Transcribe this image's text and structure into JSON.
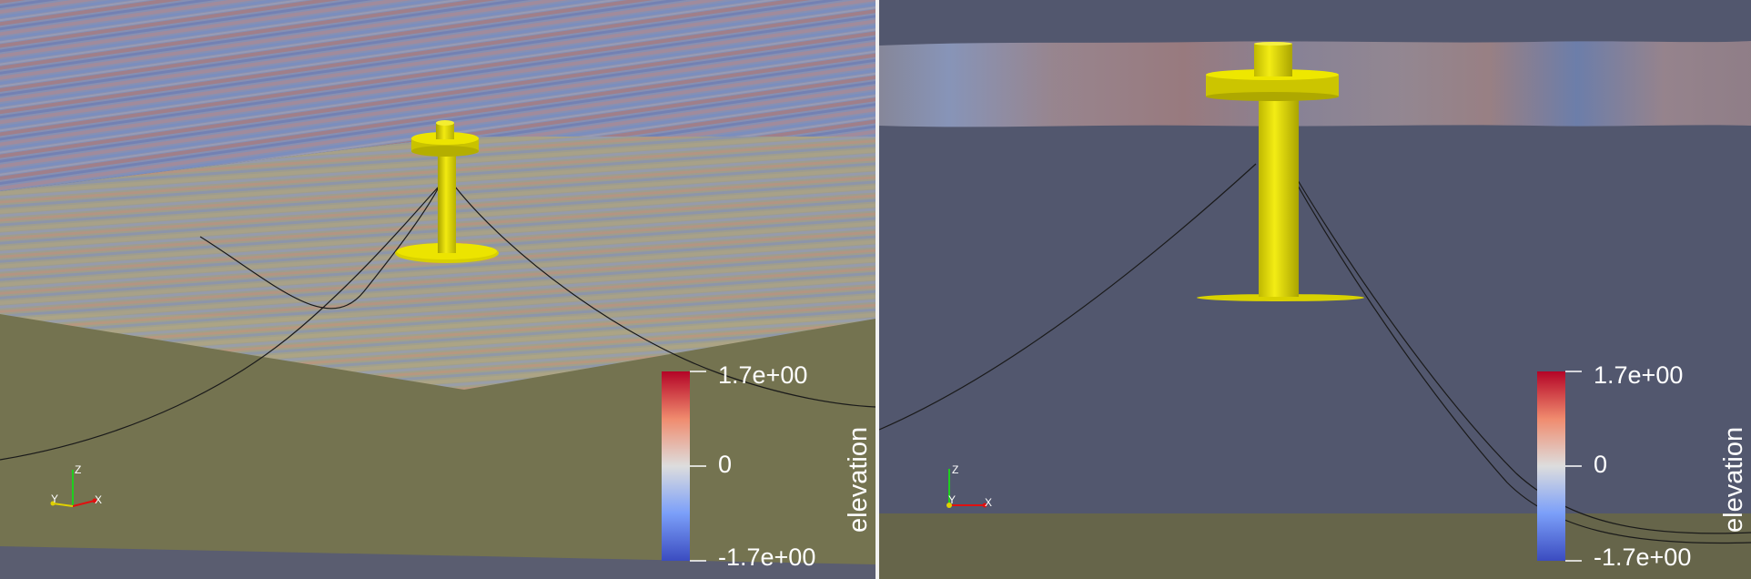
{
  "views": [
    {
      "colorbar": {
        "title": "elevation",
        "max_label": "1.7e+00",
        "mid_label": "0",
        "min_label": "-1.7e+00",
        "colors": [
          "#b40426",
          "#f08b6e",
          "#dddddd",
          "#7b9ff9",
          "#3b4cc0"
        ]
      },
      "axes": {
        "z": "Z",
        "y": "Y",
        "x": "X"
      }
    },
    {
      "colorbar": {
        "title": "elevation",
        "max_label": "1.7e+00",
        "mid_label": "0",
        "min_label": "-1.7e+00",
        "colors": [
          "#b40426",
          "#f08b6e",
          "#dddddd",
          "#7b9ff9",
          "#3b4cc0"
        ]
      },
      "axes": {
        "z": "Z",
        "y": "Y",
        "x": "X"
      }
    }
  ],
  "scene_colors": {
    "background": "#52576e",
    "seabed": "#747350",
    "seabed_dark": "#66654a",
    "platform": "#e3dc00",
    "platform_shade": "#b4ae00",
    "mooring_line": "#1a1a1a"
  }
}
